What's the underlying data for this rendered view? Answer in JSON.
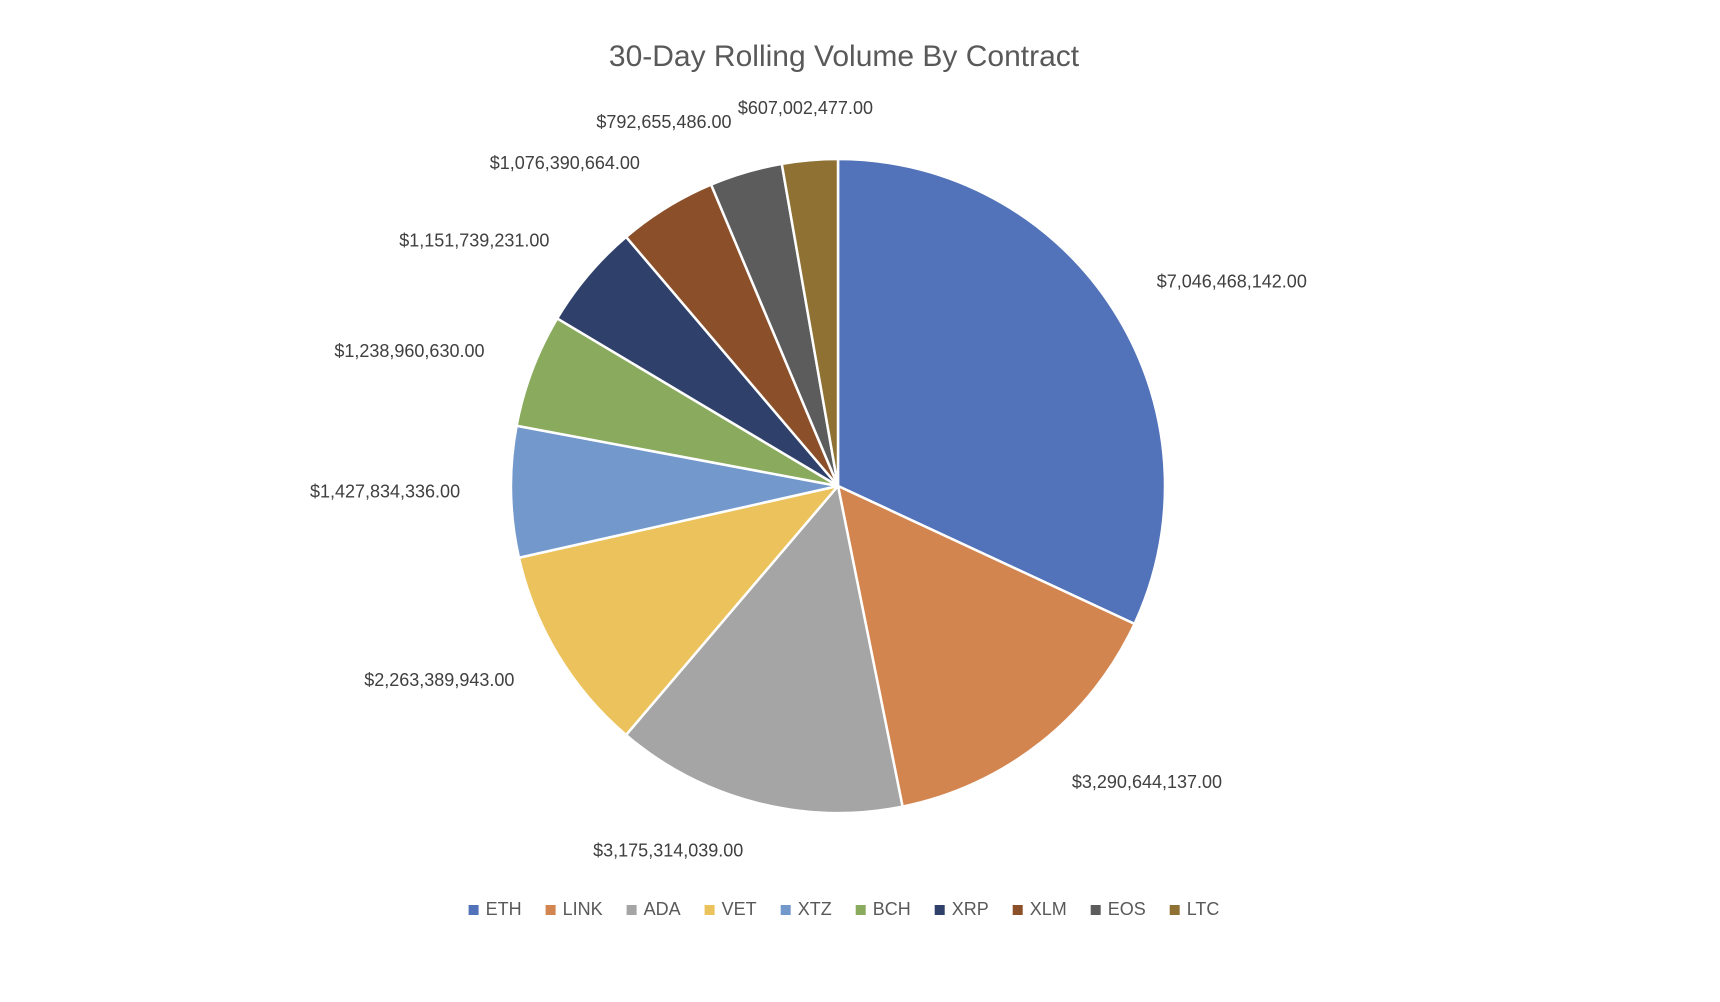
{
  "chart_data": {
    "type": "pie",
    "title": "30-Day Rolling Volume By Contract",
    "categories": [
      "ETH",
      "LINK",
      "ADA",
      "VET",
      "XTZ",
      "BCH",
      "XRP",
      "XLM",
      "EOS",
      "LTC"
    ],
    "values": [
      7046468142.0,
      3290644137.0,
      3175314039.0,
      2263389943.0,
      1427834336.0,
      1238960630.0,
      1151739231.0,
      1076390664.0,
      792655486.0,
      607002477.0
    ],
    "data_labels": [
      "$7,046,468,142.00",
      "$3,290,644,137.00",
      "$3,175,314,039.00",
      "$2,263,389,943.00",
      "$1,427,834,336.00",
      "$1,238,960,630.00",
      "$1,151,739,231.00",
      "$1,076,390,664.00",
      "$792,655,486.00",
      "$607,002,477.00"
    ],
    "colors": [
      "#5273b9",
      "#d38550",
      "#a5a5a5",
      "#ecc25c",
      "#7399cc",
      "#8aab5e",
      "#2f416b",
      "#8b4f2a",
      "#5c5c5c",
      "#8e7133"
    ],
    "legend_position": "bottom",
    "start_angle": "12 o'clock",
    "direction": "clockwise"
  }
}
